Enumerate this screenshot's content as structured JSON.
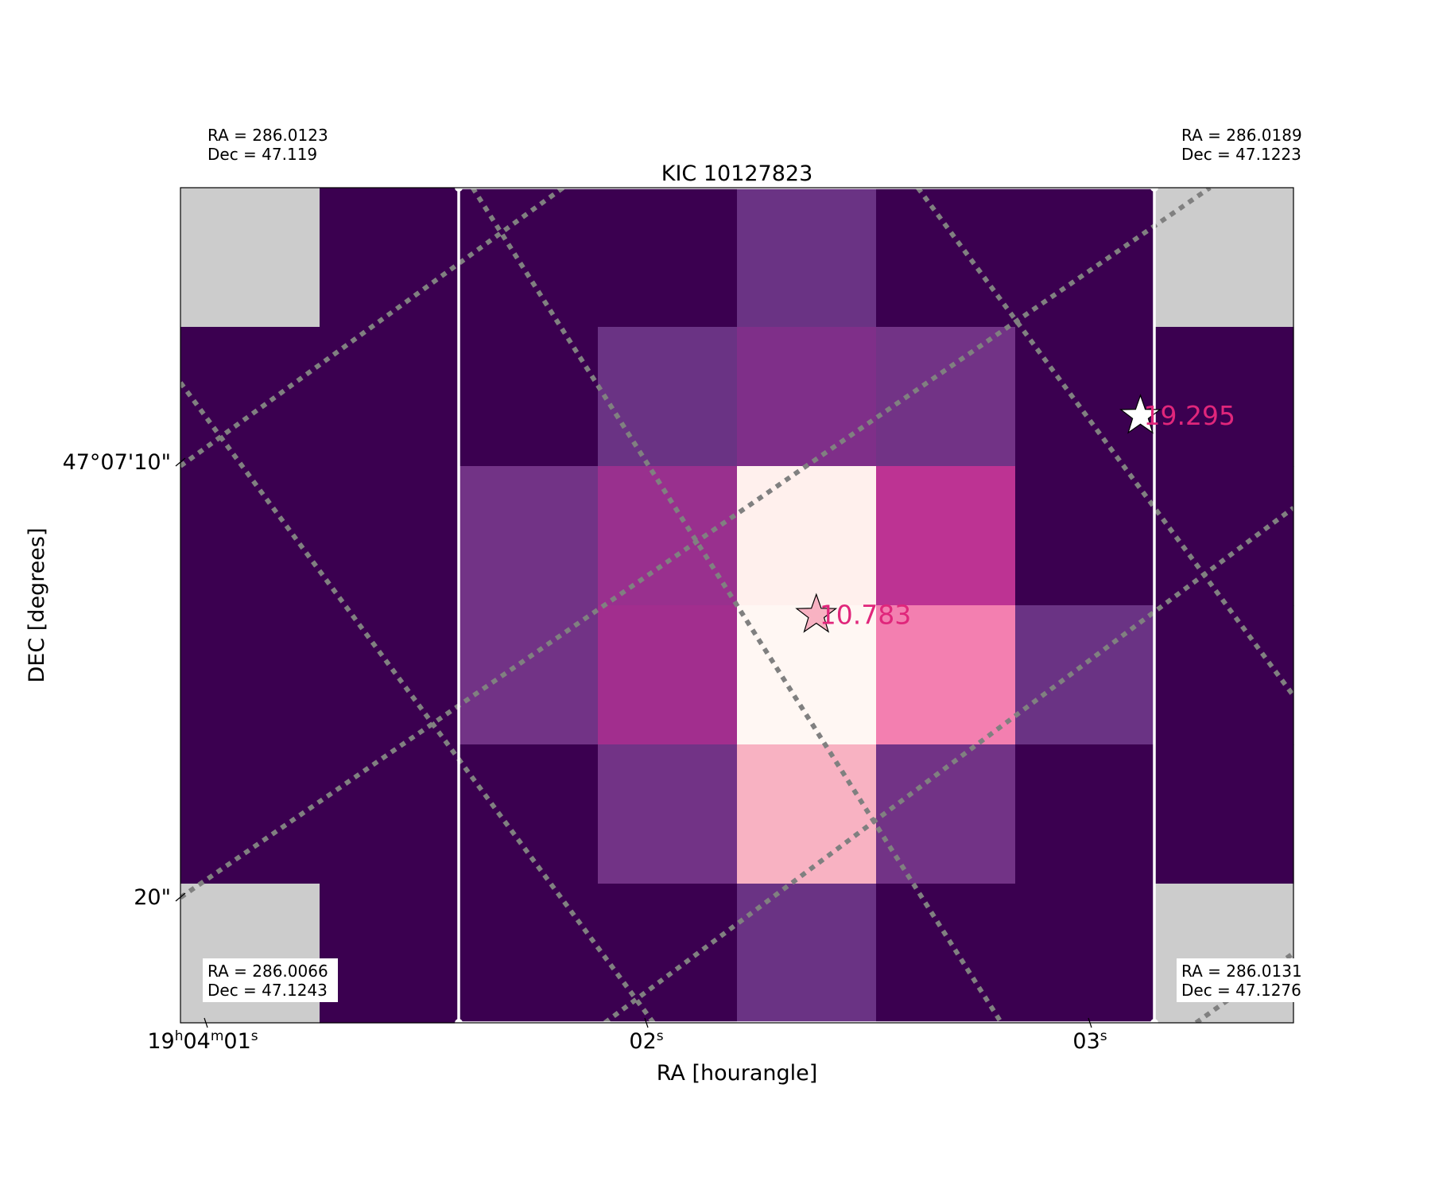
{
  "chart_data": {
    "type": "heatmap",
    "title": "KIC 10127823",
    "xlabel": "RA [hourangle]",
    "ylabel": "DEC [degrees]",
    "x_ticks": [
      {
        "h": "19",
        "m": "04",
        "s": "01"
      },
      {
        "s": "02"
      },
      {
        "s": "03"
      }
    ],
    "y_ticks": [
      "47°07'10\"",
      "20\""
    ],
    "grid": {
      "rows": 6,
      "cols": 8,
      "masked_color": "#cccccc",
      "colors": [
        [
          null,
          "#3b0050",
          "#3b0050",
          "#3b0050",
          "#6a3384",
          "#3b0050",
          "#3b0050",
          null
        ],
        [
          "#3b0050",
          "#3b0050",
          "#3b0050",
          "#6a3384",
          "#7f2f89",
          "#723386",
          "#3b0050",
          "#3b0050"
        ],
        [
          "#3b0050",
          "#3b0050",
          "#723386",
          "#99308e",
          "#fff0ed",
          "#bd3393",
          "#3b0050",
          "#3b0050"
        ],
        [
          "#3b0050",
          "#3b0050",
          "#723386",
          "#a22e8e",
          "#fff7f3",
          "#f37fb0",
          "#6a3384",
          "#3b0050"
        ],
        [
          "#3b0050",
          "#3b0050",
          "#3b0050",
          "#723386",
          "#f8b2c2",
          "#723386",
          "#3b0050",
          "#3b0050"
        ],
        [
          null,
          "#3b0050",
          "#3b0050",
          "#3b0050",
          "#6a3384",
          "#3b0050",
          "#3b0050",
          null
        ]
      ]
    },
    "aperture": {
      "col_start": 2,
      "col_end": 7,
      "row_start": 0,
      "row_end": 6,
      "color": "#ffffff"
    },
    "corner_labels": {
      "top_left": {
        "ra": "RA = 286.0123",
        "dec": "Dec = 47.119"
      },
      "top_right": {
        "ra": "RA = 286.0189",
        "dec": "Dec = 47.1223"
      },
      "bottom_left": {
        "ra": "RA = 286.0066",
        "dec": "Dec = 47.1243"
      },
      "bottom_right": {
        "ra": "RA = 286.0131",
        "dec": "Dec = 47.1276"
      }
    },
    "stars": [
      {
        "label": "10.783",
        "col": 4.57,
        "row": 3.07,
        "fill": "#f8b2c2",
        "size": 26
      },
      {
        "label": "19.295",
        "col": 6.9,
        "row": 1.64,
        "fill": "#ffffff",
        "size": 26
      }
    ],
    "label_color": "#e0267b",
    "gridline_color": "#808080"
  }
}
